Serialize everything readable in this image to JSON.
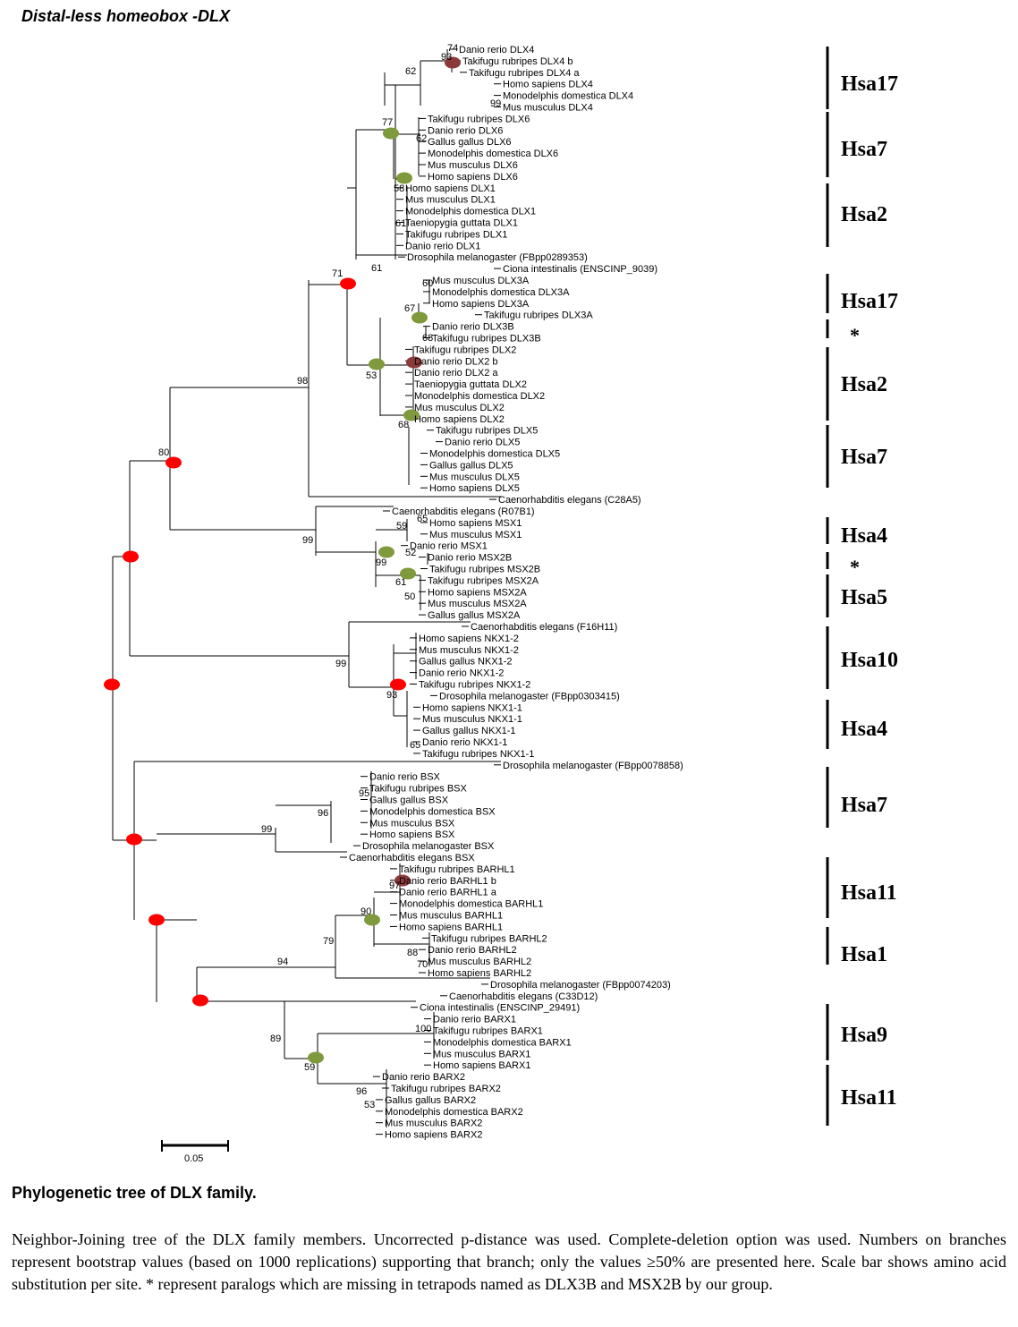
{
  "header": {
    "title": "Distal-less homeobox -DLX"
  },
  "colors": {
    "red_node": "#ff0000",
    "green_node": "#7f9a3c",
    "brown_node": "#8b3a3a",
    "line": "#000000"
  },
  "tree": {
    "leaves": [
      "Danio rerio DLX4",
      "Takifugu rubripes DLX4 b",
      "Takifugu rubripes DLX4 a",
      "Homo sapiens DLX4",
      "Monodelphis domestica DLX4",
      "Mus musculus DLX4",
      "Takifugu rubripes DLX6",
      "Danio rerio DLX6",
      "Gallus gallus DLX6",
      "Monodelphis domestica DLX6",
      "Mus musculus DLX6",
      "Homo sapiens DLX6",
      "Homo sapiens DLX1",
      "Mus musculus DLX1",
      "Monodelphis domestica DLX1",
      "Taeniopygia guttata DLX1",
      "Takifugu rubripes DLX1",
      "Danio rerio DLX1",
      "Drosophila melanogaster (FBpp0289353)",
      "Ciona intestinalis (ENSCINP_9039)",
      "Mus musculus DLX3A",
      "Monodelphis domestica DLX3A",
      "Homo sapiens DLX3A",
      "Takifugu rubripes DLX3A",
      "Danio rerio DLX3B",
      "Takifugu rubripes DLX3B",
      "Takifugu rubripes DLX2",
      "Danio rerio DLX2 b",
      "Danio rerio DLX2 a",
      "Taeniopygia guttata DLX2",
      "Monodelphis domestica DLX2",
      "Mus musculus DLX2",
      "Homo sapiens DLX2",
      "Takifugu rubripes DLX5",
      "Danio rerio DLX5",
      "Monodelphis domestica DLX5",
      "Gallus gallus DLX5",
      "Mus musculus DLX5",
      "Homo sapiens DLX5",
      "Caenorhabditis elegans (C28A5)",
      "Caenorhabditis elegans (R07B1)",
      "Homo sapiens MSX1",
      "Mus musculus MSX1",
      "Danio rerio MSX1",
      "Danio rerio MSX2B",
      "Takifugu rubripes MSX2B",
      "Takifugu rubripes MSX2A",
      "Homo sapiens MSX2A",
      "Mus musculus MSX2A",
      "Gallus gallus MSX2A",
      "Caenorhabditis elegans (F16H11)",
      "Homo sapiens NKX1-2",
      "Mus musculus NKX1-2",
      "Gallus gallus NKX1-2",
      "Danio rerio NKX1-2",
      "Takifugu rubripes NKX1-2",
      "Drosophila melanogaster (FBpp0303415)",
      "Homo sapiens NKX1-1",
      "Mus musculus NKX1-1",
      "Gallus gallus NKX1-1",
      "Danio rerio NKX1-1",
      "Takifugu rubripes NKX1-1",
      "Drosophila melanogaster (FBpp0078858)",
      "Danio rerio BSX",
      "Takifugu rubripes BSX",
      "Gallus gallus BSX",
      "Monodelphis domestica BSX",
      "Mus musculus BSX",
      "Homo sapiens BSX",
      "Drosophila melanogaster BSX",
      "Caenorhabditis elegans BSX",
      "Takifugu rubripes BARHL1",
      "Danio rerio BARHL1 b",
      "Danio rerio BARHL1 a",
      "Monodelphis domestica BARHL1",
      "Mus musculus BARHL1",
      "Homo sapiens BARHL1",
      "Takifugu rubripes BARHL2",
      "Danio rerio BARHL2",
      "Mus musculus BARHL2",
      "Homo sapiens BARHL2",
      "Drosophila melanogaster (FBpp0074203)",
      "Caenorhabditis elegans (C33D12)",
      "Ciona intestinalis (ENSCINP_29491)",
      "Danio rerio BARX1",
      "Takifugu rubripes BARX1",
      "Monodelphis domestica BARX1",
      "Mus musculus BARX1",
      "Homo sapiens BARX1",
      "Danio rerio BARX2",
      "Takifugu rubripes BARX2",
      "Gallus gallus BARX2",
      "Monodelphis domestica BARX2",
      "Mus musculus BARX2",
      "Homo sapiens BARX2"
    ],
    "bootstrap": [
      "74",
      "93",
      "62",
      "99",
      "77",
      "62",
      "58",
      "61",
      "61",
      "71",
      "60",
      "67",
      "68",
      "53",
      "68",
      "98",
      "80",
      "65",
      "59",
      "52",
      "99",
      "99",
      "61",
      "50",
      "99",
      "93",
      "65",
      "95",
      "96",
      "99",
      "97",
      "90",
      "88",
      "70",
      "79",
      "94",
      "100",
      "89",
      "59",
      "96",
      "53"
    ],
    "scale_label": "0.05"
  },
  "chromosomes": [
    "Hsa17",
    "Hsa7",
    "Hsa2",
    "Hsa17",
    "*",
    "Hsa2",
    "Hsa7",
    "Hsa4",
    "*",
    "Hsa5",
    "Hsa10",
    "Hsa4",
    "Hsa7",
    "Hsa11",
    "Hsa1",
    "Hsa9",
    "Hsa11"
  ],
  "caption": {
    "title": "Phylogenetic tree of DLX  family.",
    "body": "Neighbor-Joining tree of the  DLX family members. Uncorrected p-distance was used. Complete-deletion option was used. Numbers on branches represent bootstrap values (based on 1000 replications) supporting that branch; only the values ≥50% are presented here. Scale bar shows amino acid substitution per site. * represent paralogs which are missing in tetrapods named as DLX3B and MSX2B by our group."
  }
}
